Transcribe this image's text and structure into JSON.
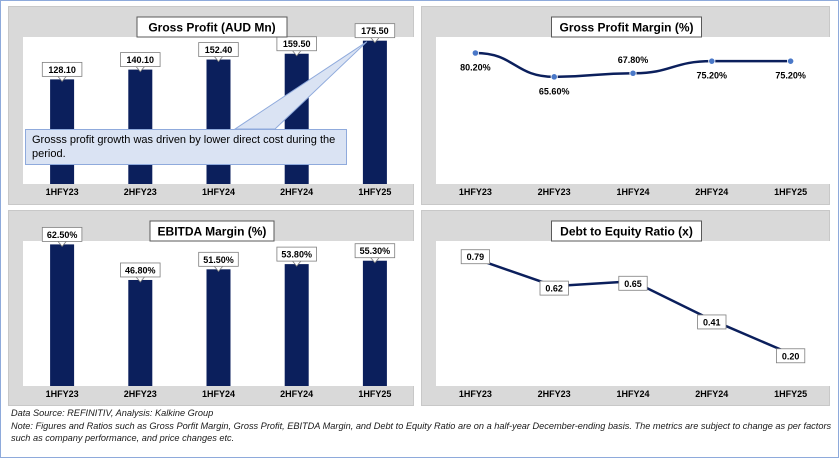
{
  "chart_data": [
    {
      "id": "gp",
      "type": "bar",
      "title": "Gross Profit (AUD Mn)",
      "categories": [
        "1HFY23",
        "2HFY23",
        "1HFY24",
        "2HFY24",
        "1HFY25"
      ],
      "values": [
        128.1,
        140.1,
        152.4,
        159.5,
        175.5
      ],
      "labels": [
        "128.10",
        "140.10",
        "152.40",
        "159.50",
        "175.50"
      ],
      "ylim": [
        0,
        180
      ],
      "color": "#0b1f5c",
      "annotation": "Grosss profit growth was driven by lower direct cost during the period."
    },
    {
      "id": "gpm",
      "type": "line",
      "title": "Gross Profit Margin (%)",
      "categories": [
        "1HFY23",
        "2HFY23",
        "1HFY24",
        "2HFY24",
        "1HFY25"
      ],
      "values": [
        80.2,
        65.6,
        67.8,
        75.2,
        75.2
      ],
      "labels": [
        "80.20%",
        "65.60%",
        "67.80%",
        "75.20%",
        "75.20%"
      ],
      "ylim": [
        0,
        90
      ],
      "color": "#0b1f5c",
      "marker_color": "#4a78c8"
    },
    {
      "id": "ebitda",
      "type": "bar",
      "title": "EBITDA Margin (%)",
      "categories": [
        "1HFY23",
        "2HFY23",
        "1HFY24",
        "2HFY24",
        "1HFY25"
      ],
      "values": [
        62.5,
        46.8,
        51.5,
        53.8,
        55.3
      ],
      "labels": [
        "62.50%",
        "46.80%",
        "51.50%",
        "53.80%",
        "55.30%"
      ],
      "ylim": [
        0,
        64
      ],
      "color": "#0b1f5c"
    },
    {
      "id": "de",
      "type": "line",
      "title": "Debt to Equity Ratio (x)",
      "categories": [
        "1HFY23",
        "2HFY23",
        "1HFY24",
        "2HFY24",
        "1HFY25"
      ],
      "values": [
        0.79,
        0.62,
        0.65,
        0.41,
        0.2
      ],
      "labels": [
        "0.79",
        "0.62",
        "0.65",
        "0.41",
        "0.20"
      ],
      "ylim": [
        0,
        0.9
      ],
      "color": "#0b1f5c"
    }
  ],
  "footer": {
    "source": "Data Source: REFINITIV, Analysis: Kalkine Group",
    "note": "Note: Figures and Ratios such as Gross Porfit Margin, Gross Profit, EBITDA Margin, and Debt to Equity Ratio are on a half-year December-ending basis. The metrics are subject to change as per factors such as company performance, and price changes etc."
  }
}
